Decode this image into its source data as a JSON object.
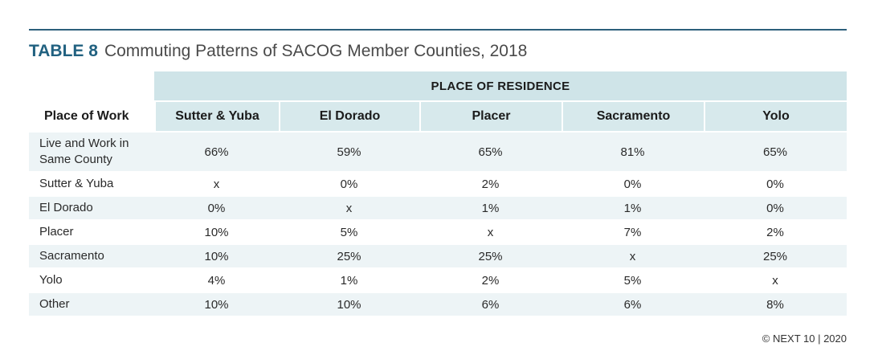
{
  "title": {
    "label": "TABLE 8",
    "caption": "Commuting Patterns of SACOG Member Counties, 2018"
  },
  "table": {
    "group_header": "PLACE OF RESIDENCE",
    "row_header": "Place of Work",
    "columns": [
      "Sutter & Yuba",
      "El Dorado",
      "Placer",
      "Sacramento",
      "Yolo"
    ],
    "rows": [
      {
        "label": "Live and Work in Same County",
        "values": [
          "66%",
          "59%",
          "65%",
          "81%",
          "65%"
        ]
      },
      {
        "label": "Sutter & Yuba",
        "values": [
          "x",
          "0%",
          "2%",
          "0%",
          "0%"
        ]
      },
      {
        "label": "El Dorado",
        "values": [
          "0%",
          "x",
          "1%",
          "1%",
          "0%"
        ]
      },
      {
        "label": "Placer",
        "values": [
          "10%",
          "5%",
          "x",
          "7%",
          "2%"
        ]
      },
      {
        "label": "Sacramento",
        "values": [
          "10%",
          "25%",
          "25%",
          "x",
          "25%"
        ]
      },
      {
        "label": "Yolo",
        "values": [
          "4%",
          "1%",
          "2%",
          "5%",
          "x"
        ]
      },
      {
        "label": "Other",
        "values": [
          "10%",
          "10%",
          "6%",
          "6%",
          "8%"
        ]
      }
    ]
  },
  "footer": {
    "credit": "© NEXT 10 | 2020"
  },
  "colors": {
    "title_accent": "#216180",
    "header_fill": "#cfe4e8",
    "stripe_fill": "#edf4f6"
  }
}
